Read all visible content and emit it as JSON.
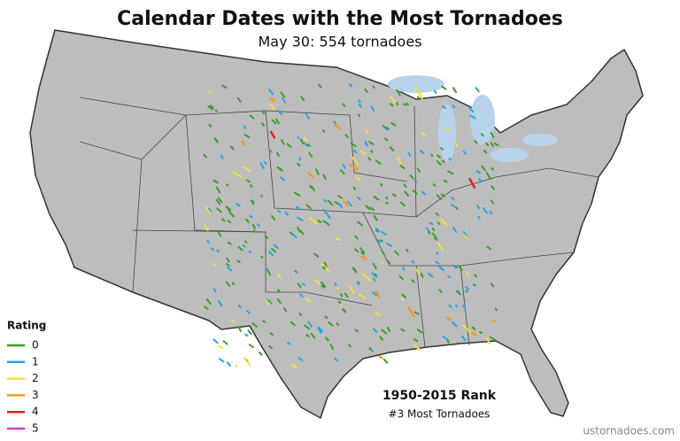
{
  "header": {
    "title": "Calendar Dates with the Most Tornadoes",
    "subtitle": "May 30: 554 tornadoes"
  },
  "legend": {
    "title": "Rating",
    "items": [
      {
        "label": "0",
        "color": "#3a9e2a"
      },
      {
        "label": "1",
        "color": "#29a3e6"
      },
      {
        "label": "2",
        "color": "#f2e23a"
      },
      {
        "label": "3",
        "color": "#f29a1e"
      },
      {
        "label": "4",
        "color": "#e0201e"
      },
      {
        "label": "5",
        "color": "#d63ad6"
      }
    ]
  },
  "rank": {
    "title": "1950-2015 Rank",
    "text": "#3 Most Tornadoes"
  },
  "footer": {
    "source": "ustornadoes.com"
  }
}
